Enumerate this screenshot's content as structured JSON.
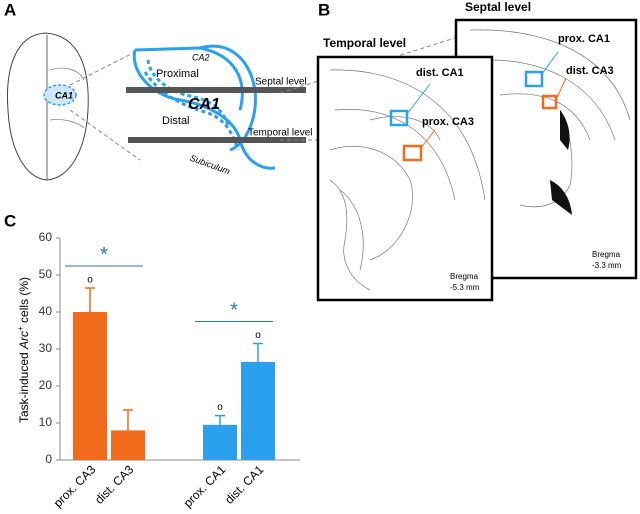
{
  "panel_a": {
    "label": "A",
    "brain_label": "CA1",
    "ca2": "CA2",
    "proximal": "Proximal",
    "ca1": "CA1",
    "distal": "Distal",
    "septal": "Septal level",
    "temporal": "Temporal level",
    "subiculum": "Subiculum"
  },
  "panel_b": {
    "label": "B",
    "septal": "Septal level",
    "temporal": "Temporal level",
    "dist_ca1": "dist. CA1",
    "prox_ca3": "prox. CA3",
    "prox_ca1": "prox. CA1",
    "dist_ca3": "dist. CA3",
    "bregma_temporal": "Bregma",
    "bregma_temporal_mm": "-5.3 mm",
    "bregma_septal": "Bregma",
    "bregma_septal_mm": "-3.3 mm"
  },
  "chart_data": {
    "type": "bar",
    "panel_label": "C",
    "y_label_parts": [
      "Task-induced ",
      "Arc",
      "+",
      " cells (%)"
    ],
    "categories": [
      "prox. CA3",
      "dist. CA3",
      "prox. CA1",
      "dist. CA1"
    ],
    "values": [
      40,
      8,
      9.5,
      26.5
    ],
    "errors": [
      6.5,
      5.5,
      2.5,
      5
    ],
    "colors": [
      "#f26a1b",
      "#f26a1b",
      "#2aa0ef",
      "#2aa0ef"
    ],
    "markers": [
      "o",
      null,
      "o",
      "o"
    ],
    "significance": [
      "*",
      "*"
    ],
    "significance_color": "#2e75b6",
    "ylim": [
      0,
      60
    ],
    "yticks": [
      0,
      10,
      20,
      30,
      40,
      50,
      60
    ]
  }
}
